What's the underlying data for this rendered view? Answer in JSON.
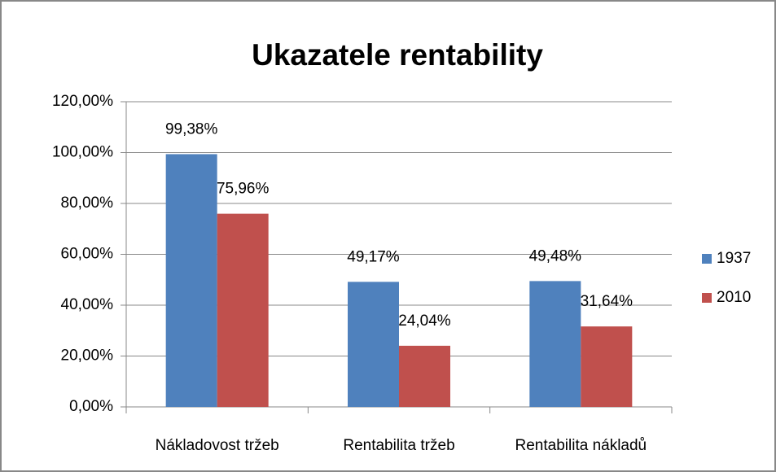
{
  "chart_data": {
    "type": "bar",
    "title": "Ukazatele rentability",
    "categories": [
      "Nákladovost tržeb",
      "Rentabilita tržeb",
      "Rentabilita nákladů"
    ],
    "series": [
      {
        "name": "1937",
        "color": "#4f81bd",
        "values": [
          99.38,
          49.17,
          49.48
        ],
        "value_labels": [
          "99,38%",
          "49,17%",
          "49,48%"
        ]
      },
      {
        "name": "2010",
        "color": "#c0504d",
        "values": [
          75.96,
          24.04,
          31.64
        ],
        "value_labels": [
          "75,96%",
          "24,04%",
          "31,64%"
        ]
      }
    ],
    "ylim": [
      0,
      120
    ],
    "yticks": [
      {
        "value": 0,
        "label": "0,00%"
      },
      {
        "value": 20,
        "label": "20,00%"
      },
      {
        "value": 40,
        "label": "40,00%"
      },
      {
        "value": 60,
        "label": "60,00%"
      },
      {
        "value": 80,
        "label": "80,00%"
      },
      {
        "value": 100,
        "label": "100,00%"
      },
      {
        "value": 120,
        "label": "120,00%"
      }
    ],
    "grid": true,
    "legend": "right"
  }
}
